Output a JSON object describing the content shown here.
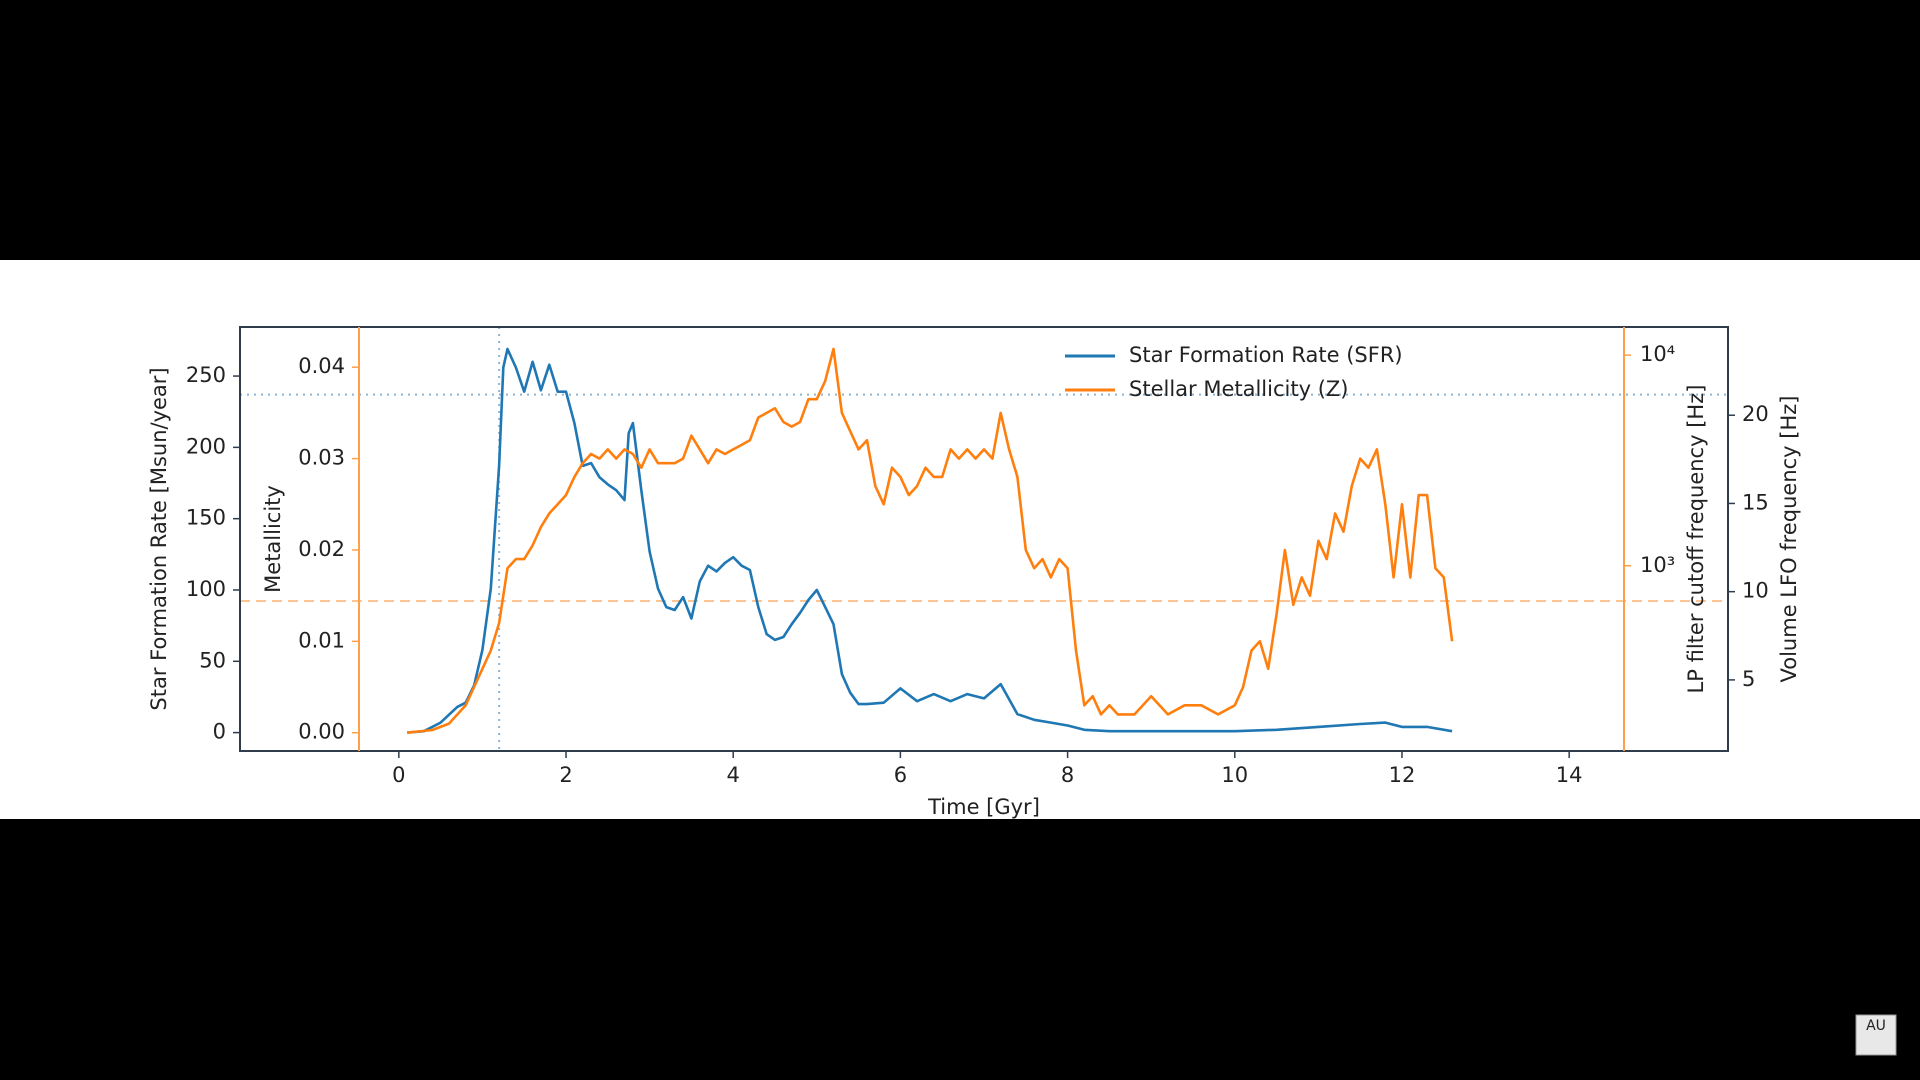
{
  "chart_data": {
    "type": "line",
    "xlabel": "Time [Gyr]",
    "xlim": [
      -1.9,
      15.9
    ],
    "xticks": [
      0,
      2,
      4,
      6,
      8,
      10,
      12,
      14
    ],
    "ylabel": "Star Formation Rate [Msun/year]",
    "ylim": [
      -12.9,
      284.4
    ],
    "yticks": [
      0,
      50,
      100,
      150,
      200,
      250
    ],
    "y2label": "Metallicity",
    "y2lim": [
      -0.002,
      0.0444
    ],
    "y2ticks": [
      {
        "value": 0,
        "label": "0.00"
      },
      0.01,
      0.02,
      0.03,
      0.04
    ],
    "y3label": "LP filter cutoff frequency [Hz]",
    "y3scale": "log",
    "y3lim": [
      132,
      13600
    ],
    "y3ticks": [
      {
        "value": 1000,
        "label": "10³"
      },
      {
        "value": 10000,
        "label": "10⁴"
      }
    ],
    "y4label": "Volume LFO frequency [Hz]",
    "y4lim": [
      0.97,
      25
    ],
    "y4ticks": [
      5,
      10,
      15,
      20
    ],
    "legend": "upper center",
    "reference_lines": [
      {
        "axis": "x",
        "value": 1.2,
        "color": "#8fb4d4",
        "style": "dotted"
      },
      {
        "axis": "y",
        "value": 237,
        "color": "#8fb4d4",
        "style": "dotted"
      },
      {
        "axis": "y3",
        "value": 680,
        "color": "#ffc490",
        "style": "dashed"
      }
    ],
    "series": [
      {
        "name": "Star Formation Rate (SFR)",
        "color": "#1f77b4",
        "axis": "y",
        "x": [
          0.1,
          0.3,
          0.5,
          0.7,
          0.8,
          0.9,
          1.0,
          1.1,
          1.2,
          1.25,
          1.3,
          1.4,
          1.5,
          1.6,
          1.7,
          1.8,
          1.9,
          2.0,
          2.1,
          2.2,
          2.3,
          2.4,
          2.5,
          2.6,
          2.7,
          2.75,
          2.8,
          2.9,
          3.0,
          3.1,
          3.2,
          3.3,
          3.4,
          3.5,
          3.6,
          3.7,
          3.8,
          3.9,
          4.0,
          4.1,
          4.2,
          4.3,
          4.4,
          4.5,
          4.6,
          4.7,
          4.8,
          4.9,
          5.0,
          5.1,
          5.2,
          5.3,
          5.4,
          5.5,
          5.6,
          5.8,
          6.0,
          6.2,
          6.4,
          6.6,
          6.8,
          7.0,
          7.2,
          7.4,
          7.6,
          7.8,
          8.0,
          8.2,
          8.5,
          9.0,
          9.5,
          10.0,
          10.5,
          11.0,
          11.5,
          11.8,
          12.0,
          12.3,
          12.6
        ],
        "values": [
          0,
          1,
          7,
          18,
          21,
          33,
          58,
          101,
          187,
          256,
          269,
          256,
          239,
          260,
          240,
          258,
          239,
          239,
          217,
          187,
          189,
          179,
          174,
          170,
          163,
          210,
          217,
          170,
          127,
          101,
          88,
          86,
          95,
          80,
          106,
          117,
          113,
          119,
          123,
          117,
          114,
          88,
          69,
          65,
          67,
          76,
          84,
          93,
          100,
          88,
          76,
          41,
          28,
          20,
          20,
          21,
          31,
          22,
          27,
          22,
          27,
          24,
          34,
          13,
          9,
          7,
          5,
          2,
          1,
          1,
          1,
          1,
          2,
          4,
          6,
          7,
          4,
          4,
          1
        ]
      },
      {
        "name": "Stellar Metallicity (Z)",
        "color": "#ff7f0e",
        "axis": "y2",
        "x": [
          0.1,
          0.4,
          0.6,
          0.8,
          0.9,
          1.0,
          1.1,
          1.2,
          1.3,
          1.4,
          1.5,
          1.6,
          1.7,
          1.8,
          1.9,
          2.0,
          2.1,
          2.2,
          2.3,
          2.4,
          2.5,
          2.6,
          2.7,
          2.8,
          2.9,
          3.0,
          3.1,
          3.2,
          3.3,
          3.4,
          3.5,
          3.6,
          3.7,
          3.8,
          3.9,
          4.0,
          4.1,
          4.2,
          4.3,
          4.4,
          4.5,
          4.6,
          4.7,
          4.8,
          4.9,
          5.0,
          5.1,
          5.2,
          5.3,
          5.4,
          5.5,
          5.6,
          5.7,
          5.8,
          5.9,
          6.0,
          6.1,
          6.2,
          6.3,
          6.4,
          6.5,
          6.6,
          6.7,
          6.8,
          6.9,
          7.0,
          7.1,
          7.2,
          7.3,
          7.4,
          7.5,
          7.6,
          7.7,
          7.8,
          7.9,
          8.0,
          8.1,
          8.2,
          8.3,
          8.4,
          8.5,
          8.6,
          8.8,
          9.0,
          9.2,
          9.4,
          9.6,
          9.8,
          10.0,
          10.1,
          10.2,
          10.3,
          10.4,
          10.5,
          10.6,
          10.7,
          10.8,
          10.9,
          11.0,
          11.1,
          11.2,
          11.3,
          11.4,
          11.5,
          11.6,
          11.7,
          11.8,
          11.9,
          12.0,
          12.1,
          12.2,
          12.3,
          12.4,
          12.5,
          12.6
        ],
        "values": [
          0,
          0.0003,
          0.001,
          0.003,
          0.005,
          0.007,
          0.009,
          0.012,
          0.018,
          0.019,
          0.019,
          0.0205,
          0.0225,
          0.024,
          0.025,
          0.026,
          0.028,
          0.0295,
          0.0305,
          0.03,
          0.031,
          0.03,
          0.031,
          0.0305,
          0.029,
          0.031,
          0.0295,
          0.0295,
          0.0295,
          0.03,
          0.0325,
          0.031,
          0.0295,
          0.031,
          0.0305,
          0.031,
          0.0315,
          0.032,
          0.0345,
          0.035,
          0.0355,
          0.034,
          0.0335,
          0.034,
          0.0365,
          0.0365,
          0.0385,
          0.042,
          0.035,
          0.033,
          0.031,
          0.032,
          0.027,
          0.025,
          0.029,
          0.028,
          0.026,
          0.027,
          0.029,
          0.028,
          0.028,
          0.031,
          0.03,
          0.031,
          0.03,
          0.031,
          0.03,
          0.035,
          0.031,
          0.028,
          0.02,
          0.018,
          0.019,
          0.017,
          0.019,
          0.018,
          0.009,
          0.003,
          0.004,
          0.002,
          0.003,
          0.002,
          0.002,
          0.004,
          0.002,
          0.003,
          0.003,
          0.002,
          0.003,
          0.005,
          0.009,
          0.01,
          0.007,
          0.013,
          0.02,
          0.014,
          0.017,
          0.015,
          0.021,
          0.019,
          0.024,
          0.022,
          0.027,
          0.03,
          0.029,
          0.031,
          0.025,
          0.017,
          0.025,
          0.017,
          0.026,
          0.026,
          0.018,
          0.017,
          0.01
        ]
      }
    ]
  },
  "logo": "AU"
}
